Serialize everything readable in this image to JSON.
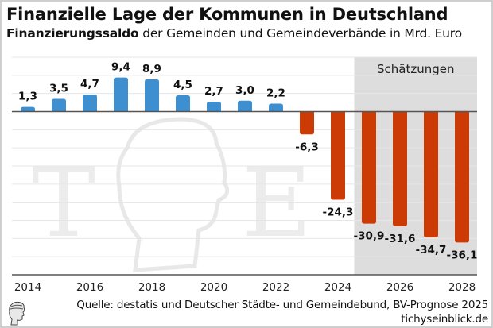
{
  "header": {
    "title": "Finanzielle Lage der Kommunen in Deutschland",
    "subtitle_bold": "Finanzierungssaldo",
    "subtitle_rest": " der Gemeinden und Gemeindeverbände in Mrd. Euro"
  },
  "footer": {
    "source": "Quelle: destatis und Deutscher Städte- und Gemeindebund, BV-Prognose 2025",
    "site": "tichyseinblick.de"
  },
  "watermark": {
    "left_letter": "T",
    "right_letter": "E"
  },
  "colors": {
    "positive": "#3d8fd0",
    "negative": "#cc3a06",
    "estimate_shade": "#dddddd",
    "grid": "#e6e6e6",
    "axis": "#555555"
  },
  "chart_data": {
    "type": "bar",
    "title": "Finanzielle Lage der Kommunen in Deutschland",
    "subtitle": "Finanzierungssaldo der Gemeinden und Gemeindeverbände in Mrd. Euro",
    "xlabel": "",
    "ylabel": "Mrd. Euro",
    "categories": [
      "2014",
      "2015",
      "2016",
      "2017",
      "2018",
      "2019",
      "2020",
      "2021",
      "2022",
      "2023",
      "2024",
      "2025",
      "2026",
      "2027",
      "2028"
    ],
    "values": [
      1.3,
      3.5,
      4.7,
      9.4,
      8.9,
      4.5,
      2.7,
      3.0,
      2.2,
      -6.3,
      -24.3,
      -30.9,
      -31.6,
      -34.7,
      -36.1
    ],
    "value_labels": [
      "1,3",
      "3,5",
      "4,7",
      "9,4",
      "8,9",
      "4,5",
      "2,7",
      "3,0",
      "2,2",
      "-6,3",
      "-24,3",
      "-30,9",
      "-31,6",
      "-34,7",
      "-36,1"
    ],
    "x_tick_labels": [
      "2014",
      "2016",
      "2018",
      "2020",
      "2022",
      "2024",
      "2026",
      "2028"
    ],
    "ylim": [
      -45,
      15
    ],
    "y_grid_step": 5,
    "grid": true,
    "y_tick_labels_shown": false,
    "estimate_region": {
      "from": "2025",
      "to": "2028",
      "label": "Schätzungen"
    }
  }
}
